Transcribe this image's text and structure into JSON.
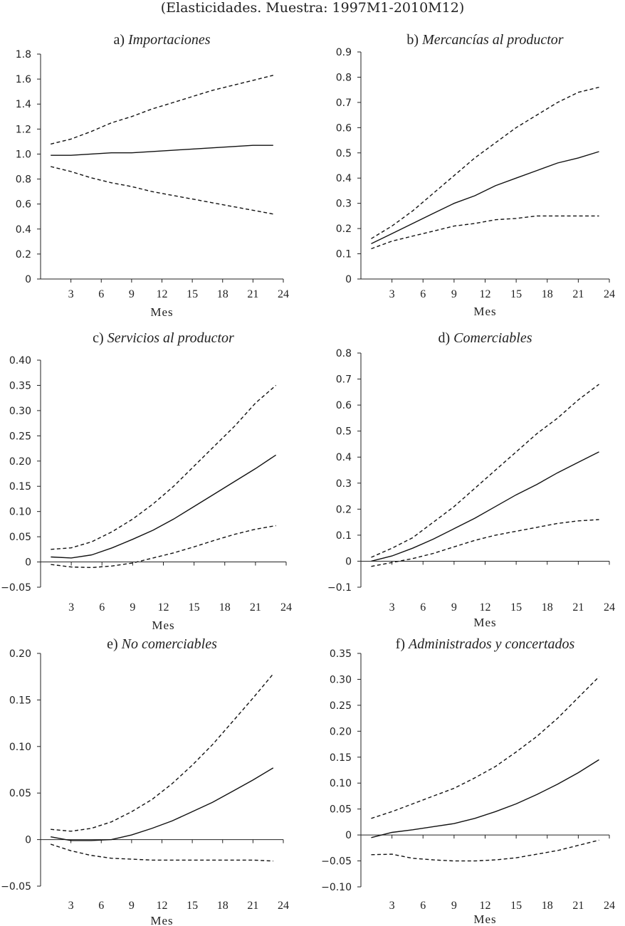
{
  "header": "(Elasticidades. Muestra: 1997M1-2010M12)",
  "chart_data": [
    {
      "type": "line",
      "title_prefix": "a)",
      "title": "Importaciones",
      "xlabel": "Mes",
      "xticks": [
        3,
        6,
        9,
        12,
        15,
        18,
        21,
        24
      ],
      "xlim": [
        0,
        24
      ],
      "yticks": [
        "0",
        "0.2",
        "0.4",
        "0.6",
        "0.8",
        "1.0",
        "1.2",
        "1.4",
        "1.6",
        "1.8"
      ],
      "ylim": [
        0,
        1.8
      ],
      "x": [
        1,
        3,
        5,
        7,
        9,
        11,
        13,
        15,
        17,
        19,
        21,
        23
      ],
      "series": [
        {
          "name": "upper band",
          "style": "dashed",
          "values": [
            1.08,
            1.12,
            1.18,
            1.25,
            1.3,
            1.36,
            1.41,
            1.46,
            1.51,
            1.55,
            1.59,
            1.63
          ]
        },
        {
          "name": "estimate",
          "style": "solid",
          "values": [
            0.99,
            0.99,
            1.0,
            1.01,
            1.01,
            1.02,
            1.03,
            1.04,
            1.05,
            1.06,
            1.07,
            1.07
          ]
        },
        {
          "name": "lower band",
          "style": "dashed",
          "values": [
            0.9,
            0.86,
            0.81,
            0.77,
            0.74,
            0.7,
            0.67,
            0.64,
            0.61,
            0.58,
            0.55,
            0.52
          ]
        }
      ]
    },
    {
      "type": "line",
      "title_prefix": "b)",
      "title": "Mercancías al productor",
      "xlabel": "Mes",
      "xticks": [
        3,
        6,
        9,
        12,
        15,
        18,
        21,
        24
      ],
      "xlim": [
        0,
        24
      ],
      "yticks": [
        "0",
        "0.1",
        "0.2",
        "0.3",
        "0.4",
        "0.5",
        "0.6",
        "0.7",
        "0.8",
        "0.9"
      ],
      "ylim": [
        0,
        0.9
      ],
      "x": [
        1,
        3,
        5,
        7,
        9,
        11,
        13,
        15,
        17,
        19,
        21,
        23
      ],
      "series": [
        {
          "name": "upper band",
          "style": "dashed",
          "values": [
            0.16,
            0.21,
            0.27,
            0.34,
            0.41,
            0.48,
            0.54,
            0.6,
            0.65,
            0.7,
            0.74,
            0.76
          ]
        },
        {
          "name": "estimate",
          "style": "solid",
          "values": [
            0.14,
            0.18,
            0.22,
            0.26,
            0.3,
            0.33,
            0.37,
            0.4,
            0.43,
            0.46,
            0.48,
            0.505
          ]
        },
        {
          "name": "lower band",
          "style": "dashed",
          "values": [
            0.12,
            0.15,
            0.17,
            0.19,
            0.21,
            0.22,
            0.235,
            0.24,
            0.25,
            0.25,
            0.25,
            0.25
          ]
        }
      ]
    },
    {
      "type": "line",
      "title_prefix": "c)",
      "title": "Servicios al productor",
      "xlabel": "Mes",
      "xticks": [
        3,
        6,
        9,
        12,
        15,
        18,
        21,
        24
      ],
      "xlim": [
        0,
        24
      ],
      "yticks": [
        "−0.05",
        "0",
        "0.05",
        "0.10",
        "0.15",
        "0.20",
        "0.25",
        "0.30",
        "0.35",
        "0.40"
      ],
      "ylim": [
        -0.05,
        0.4
      ],
      "x": [
        1,
        3,
        5,
        7,
        9,
        11,
        13,
        15,
        17,
        19,
        21,
        23
      ],
      "series": [
        {
          "name": "upper band",
          "style": "dashed",
          "values": [
            0.025,
            0.028,
            0.04,
            0.06,
            0.085,
            0.115,
            0.15,
            0.19,
            0.23,
            0.27,
            0.315,
            0.35
          ]
        },
        {
          "name": "estimate",
          "style": "solid",
          "values": [
            0.01,
            0.008,
            0.014,
            0.028,
            0.045,
            0.063,
            0.085,
            0.11,
            0.135,
            0.16,
            0.185,
            0.212
          ]
        },
        {
          "name": "lower band",
          "style": "dashed",
          "values": [
            -0.005,
            -0.01,
            -0.011,
            -0.008,
            -0.002,
            0.008,
            0.018,
            0.03,
            0.043,
            0.055,
            0.065,
            0.072
          ]
        }
      ]
    },
    {
      "type": "line",
      "title_prefix": "d)",
      "title": "Comerciables",
      "xlabel": "Mes",
      "xticks": [
        3,
        6,
        9,
        12,
        15,
        18,
        21,
        24
      ],
      "xlim": [
        0,
        24
      ],
      "yticks": [
        "−0.1",
        "0",
        "0.1",
        "0.2",
        "0.3",
        "0.4",
        "0.5",
        "0.6",
        "0.7",
        "0.8"
      ],
      "ylim": [
        -0.1,
        0.8
      ],
      "x": [
        1,
        3,
        5,
        7,
        9,
        11,
        13,
        15,
        17,
        19,
        21,
        23
      ],
      "series": [
        {
          "name": "upper band",
          "style": "dashed",
          "values": [
            0.015,
            0.05,
            0.09,
            0.15,
            0.21,
            0.28,
            0.35,
            0.42,
            0.49,
            0.55,
            0.62,
            0.68
          ]
        },
        {
          "name": "estimate",
          "style": "solid",
          "values": [
            0.0,
            0.02,
            0.05,
            0.085,
            0.125,
            0.165,
            0.21,
            0.255,
            0.295,
            0.34,
            0.38,
            0.42
          ]
        },
        {
          "name": "lower band",
          "style": "dashed",
          "values": [
            -0.02,
            -0.005,
            0.01,
            0.03,
            0.055,
            0.08,
            0.1,
            0.115,
            0.13,
            0.145,
            0.155,
            0.16
          ]
        }
      ]
    },
    {
      "type": "line",
      "title_prefix": "e)",
      "title": "No comerciables",
      "xlabel": "Mes",
      "xticks": [
        3,
        6,
        9,
        12,
        15,
        18,
        21,
        24
      ],
      "xlim": [
        0,
        24
      ],
      "yticks": [
        "−0.05",
        "0",
        "0.05",
        "0.10",
        "0.15",
        "0.20"
      ],
      "ylim": [
        -0.05,
        0.2
      ],
      "x": [
        1,
        3,
        5,
        7,
        9,
        11,
        13,
        15,
        17,
        19,
        21,
        23
      ],
      "series": [
        {
          "name": "upper band",
          "style": "dashed",
          "values": [
            0.011,
            0.009,
            0.012,
            0.019,
            0.03,
            0.043,
            0.06,
            0.08,
            0.102,
            0.127,
            0.152,
            0.178
          ]
        },
        {
          "name": "estimate",
          "style": "solid",
          "values": [
            0.003,
            -0.001,
            -0.001,
            0.0,
            0.005,
            0.012,
            0.02,
            0.03,
            0.04,
            0.052,
            0.064,
            0.077
          ]
        },
        {
          "name": "lower band",
          "style": "dashed",
          "values": [
            -0.005,
            -0.012,
            -0.017,
            -0.02,
            -0.021,
            -0.022,
            -0.022,
            -0.022,
            -0.022,
            -0.022,
            -0.022,
            -0.023
          ]
        }
      ]
    },
    {
      "type": "line",
      "title_prefix": "f)",
      "title": "Administrados y concertados",
      "xlabel": "Mes",
      "xticks": [
        3,
        6,
        9,
        12,
        15,
        18,
        21,
        24
      ],
      "xlim": [
        0,
        24
      ],
      "yticks": [
        "−0.10",
        "−0.05",
        "0",
        "0.05",
        "0.10",
        "0.15",
        "0.20",
        "0.25",
        "0.30",
        "0.35"
      ],
      "ylim": [
        -0.1,
        0.35
      ],
      "x": [
        1,
        3,
        5,
        7,
        9,
        11,
        13,
        15,
        17,
        19,
        21,
        23
      ],
      "series": [
        {
          "name": "upper band",
          "style": "dashed",
          "values": [
            0.032,
            0.045,
            0.06,
            0.075,
            0.09,
            0.11,
            0.132,
            0.16,
            0.19,
            0.225,
            0.265,
            0.305
          ]
        },
        {
          "name": "estimate",
          "style": "solid",
          "values": [
            -0.005,
            0.005,
            0.01,
            0.016,
            0.022,
            0.032,
            0.045,
            0.06,
            0.078,
            0.098,
            0.12,
            0.145
          ]
        },
        {
          "name": "lower band",
          "style": "dashed",
          "values": [
            -0.038,
            -0.037,
            -0.045,
            -0.048,
            -0.05,
            -0.05,
            -0.048,
            -0.044,
            -0.037,
            -0.03,
            -0.02,
            -0.01
          ]
        }
      ]
    }
  ]
}
